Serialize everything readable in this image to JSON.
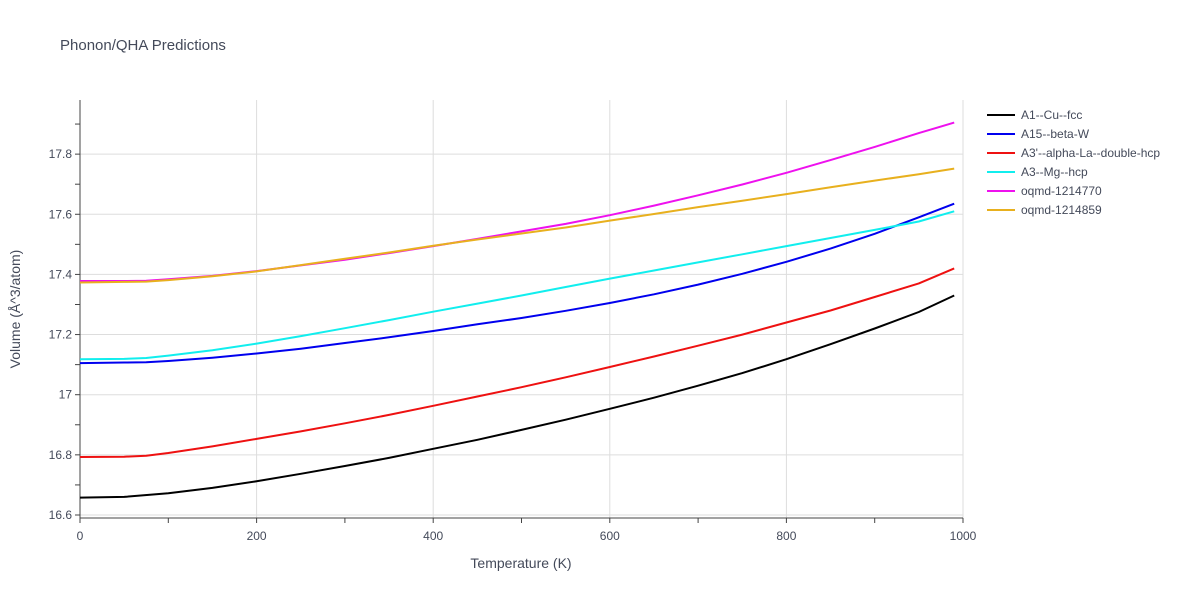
{
  "chart_data": {
    "type": "line",
    "title": "Phonon/QHA Predictions",
    "xlabel": "Temperature (K)",
    "ylabel": "Volume (Å^3/atom)",
    "xlim": [
      0,
      1000
    ],
    "ylim": [
      16.59,
      17.98
    ],
    "x_ticks": [
      0,
      200,
      400,
      600,
      800,
      1000
    ],
    "x_tick_labels": [
      "0",
      "200",
      "400",
      "600",
      "800",
      "1000"
    ],
    "y_ticks": [
      16.6,
      16.8,
      17.0,
      17.2,
      17.4,
      17.6,
      17.8
    ],
    "y_tick_labels": [
      "16.6",
      "16.8",
      "17",
      "17.2",
      "17.4",
      "17.6",
      "17.8"
    ],
    "grid": true,
    "legend_position": "top-right",
    "series": [
      {
        "name": "A1--Cu--fcc",
        "color": "#000000",
        "x": [
          0,
          50,
          100,
          150,
          200,
          250,
          300,
          350,
          400,
          450,
          500,
          550,
          600,
          650,
          700,
          750,
          800,
          850,
          900,
          950,
          990
        ],
        "y": [
          16.658,
          16.66,
          16.672,
          16.69,
          16.712,
          16.737,
          16.763,
          16.79,
          16.82,
          16.85,
          16.883,
          16.917,
          16.953,
          16.99,
          17.03,
          17.072,
          17.118,
          17.168,
          17.22,
          17.275,
          17.33
        ]
      },
      {
        "name": "A15--beta-W",
        "color": "#0000ee",
        "x": [
          0,
          50,
          75,
          100,
          150,
          200,
          250,
          300,
          350,
          400,
          450,
          500,
          550,
          600,
          650,
          700,
          750,
          800,
          850,
          900,
          950,
          990
        ],
        "y": [
          17.105,
          17.107,
          17.108,
          17.112,
          17.123,
          17.137,
          17.153,
          17.172,
          17.191,
          17.212,
          17.234,
          17.255,
          17.279,
          17.305,
          17.334,
          17.366,
          17.402,
          17.442,
          17.486,
          17.535,
          17.59,
          17.635
        ]
      },
      {
        "name": "A3'--alpha-La--double-hcp",
        "color": "#ee1111",
        "x": [
          0,
          50,
          75,
          100,
          150,
          200,
          250,
          300,
          350,
          400,
          450,
          500,
          550,
          600,
          650,
          700,
          750,
          800,
          850,
          900,
          950,
          990
        ],
        "y": [
          16.793,
          16.794,
          16.797,
          16.806,
          16.828,
          16.853,
          16.878,
          16.905,
          16.933,
          16.963,
          16.994,
          17.025,
          17.058,
          17.092,
          17.127,
          17.163,
          17.2,
          17.24,
          17.28,
          17.325,
          17.37,
          17.42
        ]
      },
      {
        "name": "A3--Mg--hcp",
        "color": "#11eeee",
        "x": [
          0,
          50,
          75,
          100,
          150,
          200,
          250,
          300,
          350,
          400,
          450,
          500,
          550,
          600,
          650,
          700,
          750,
          800,
          850,
          900,
          950,
          990
        ],
        "y": [
          17.118,
          17.119,
          17.122,
          17.13,
          17.148,
          17.17,
          17.195,
          17.221,
          17.248,
          17.276,
          17.303,
          17.33,
          17.358,
          17.386,
          17.413,
          17.44,
          17.467,
          17.494,
          17.521,
          17.548,
          17.576,
          17.61
        ]
      },
      {
        "name": "oqmd-1214770",
        "color": "#ee11ee",
        "x": [
          0,
          50,
          75,
          100,
          150,
          200,
          250,
          300,
          350,
          400,
          450,
          500,
          550,
          600,
          650,
          700,
          750,
          800,
          850,
          900,
          950,
          990
        ],
        "y": [
          17.378,
          17.378,
          17.379,
          17.384,
          17.395,
          17.411,
          17.43,
          17.449,
          17.471,
          17.494,
          17.518,
          17.543,
          17.568,
          17.597,
          17.629,
          17.663,
          17.699,
          17.738,
          17.78,
          17.824,
          17.87,
          17.905
        ]
      },
      {
        "name": "oqmd-1214859",
        "color": "#e8b01e",
        "x": [
          0,
          50,
          75,
          100,
          150,
          200,
          250,
          300,
          350,
          400,
          450,
          500,
          550,
          600,
          650,
          700,
          750,
          800,
          850,
          900,
          950,
          990
        ],
        "y": [
          17.373,
          17.375,
          17.376,
          17.381,
          17.394,
          17.41,
          17.431,
          17.452,
          17.473,
          17.495,
          17.516,
          17.536,
          17.556,
          17.579,
          17.601,
          17.624,
          17.645,
          17.667,
          17.69,
          17.712,
          17.733,
          17.752
        ]
      }
    ]
  }
}
